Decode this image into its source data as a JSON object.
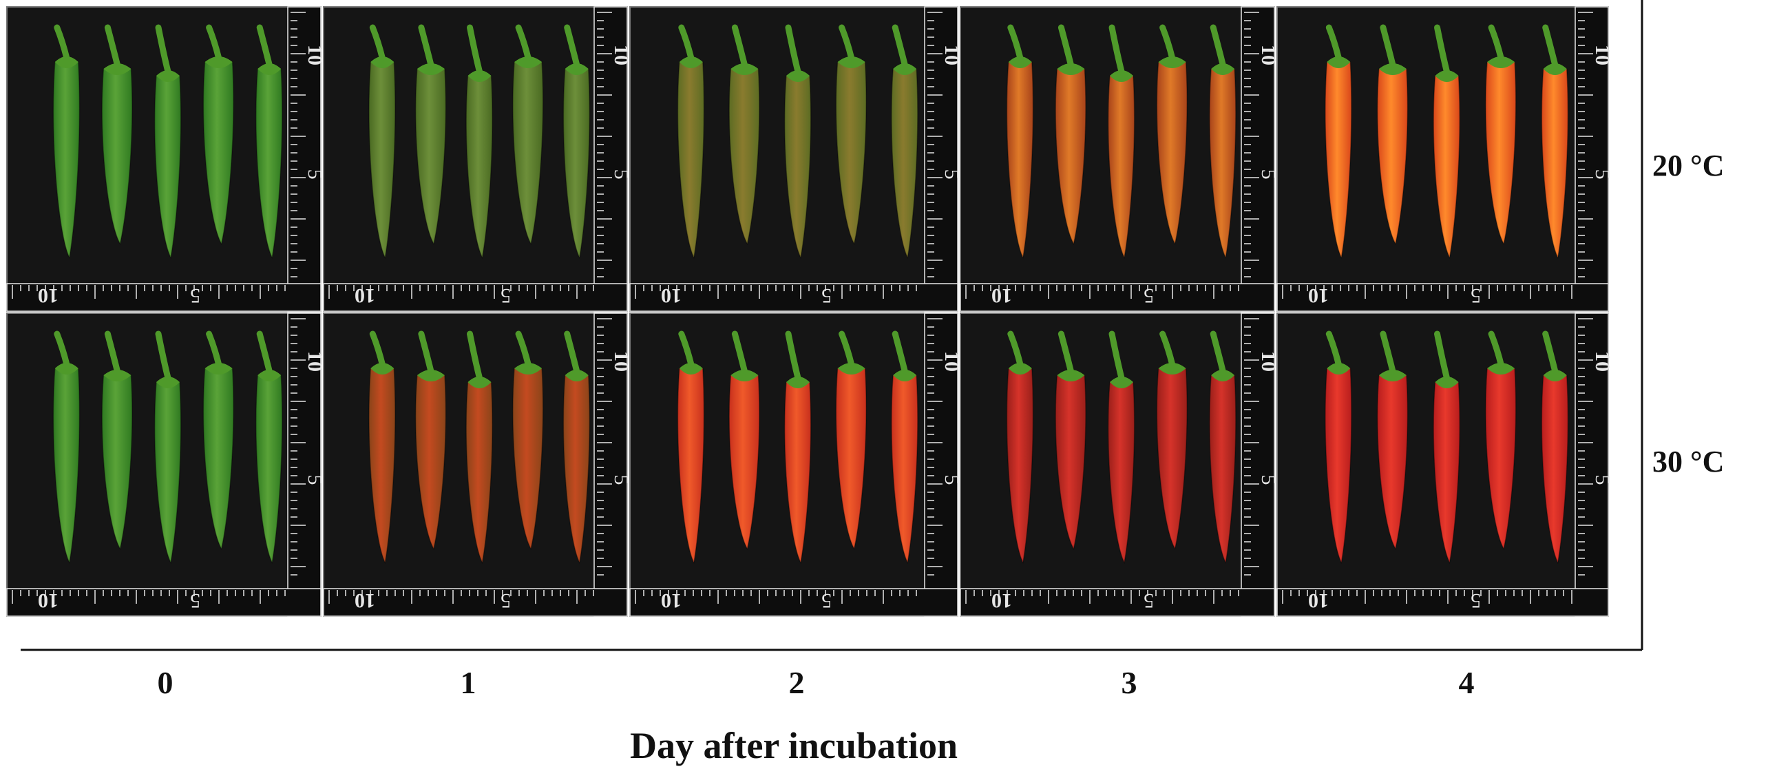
{
  "figure": {
    "temperatures": [
      "20 °C",
      "30 °C"
    ],
    "days": [
      "0",
      "1",
      "2",
      "3",
      "4"
    ],
    "x_axis_title": "Day after incubation",
    "ruler_marks": [
      "10",
      "5"
    ]
  },
  "photo_stages": {
    "20 °C": [
      "green",
      "green-dark",
      "green-turning",
      "orange-turning",
      "orange"
    ],
    "30 °C": [
      "green",
      "green-red",
      "orange-red",
      "red-dark",
      "red"
    ]
  },
  "colors": {
    "green": [
      "#2f7a21",
      "#5aa338"
    ],
    "green-dark": [
      "#4a6a22",
      "#6d8f3a"
    ],
    "green-turning": [
      "#5c6c23",
      "#8a7b2e"
    ],
    "orange-turning": [
      "#a8431a",
      "#e07a28"
    ],
    "orange": [
      "#d9471a",
      "#ff8a2c"
    ],
    "green-red": [
      "#8a4419",
      "#c44a20"
    ],
    "orange-red": [
      "#c8301d",
      "#f05a2a"
    ],
    "red-dark": [
      "#9a1f1a",
      "#d6332a"
    ],
    "red": [
      "#b81d1d",
      "#e8392c"
    ],
    "stem": "#4f9a2a",
    "photo_bg": "#151515",
    "ruler": "#e6e6e6"
  }
}
